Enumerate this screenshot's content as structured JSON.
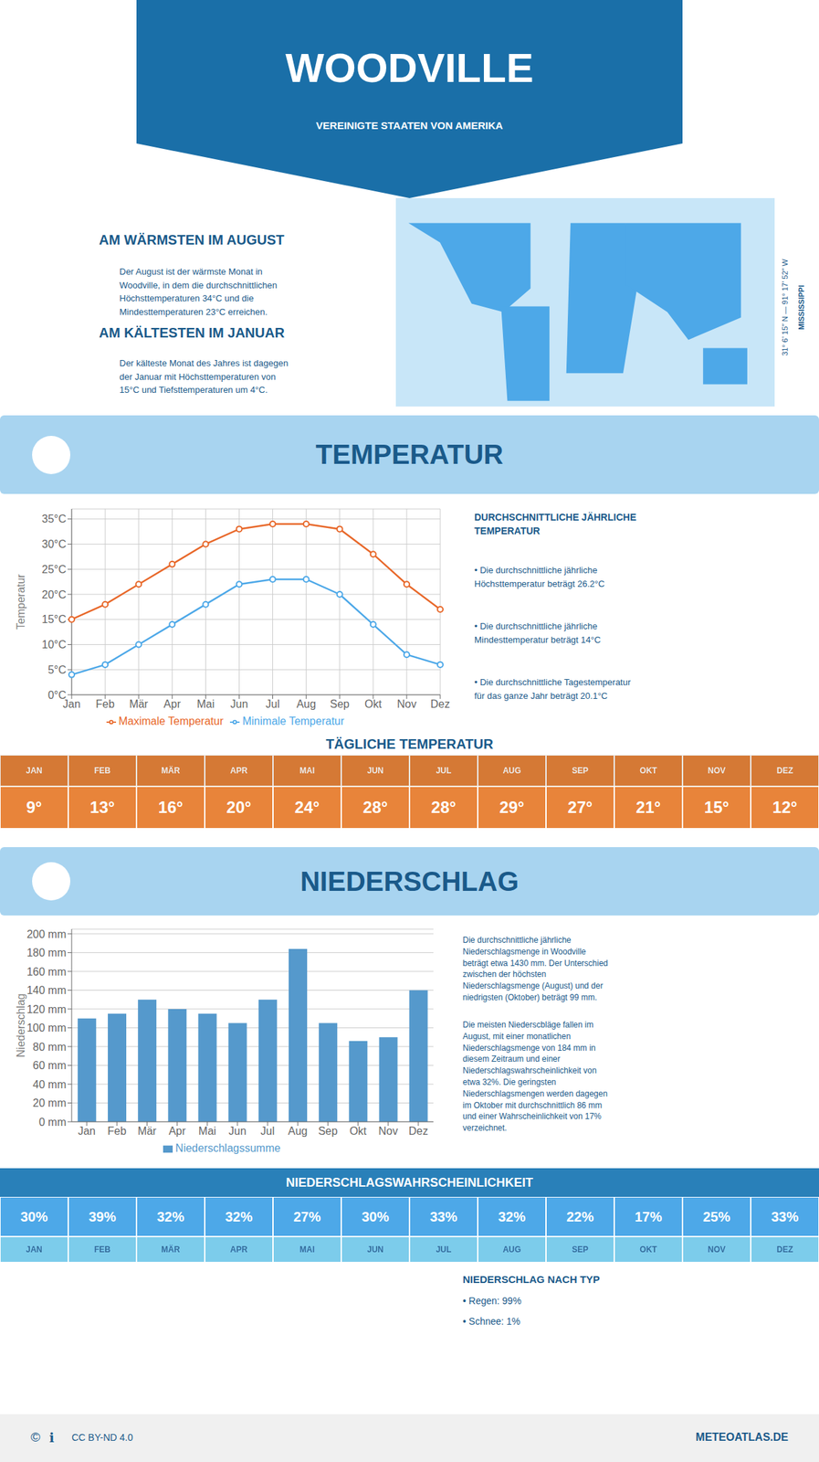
{
  "title": "WOODVILLE",
  "subtitle": "VEREINIGTE STAATEN VON AMERIKA",
  "annotations": [
    "31° 6’ 15″ N — 91° 17’ 52″ W",
    "MISSISSIPPI",
    "AM WÄRMSTEN IM AUGUST",
    "Der August ist der wärmste Monat in\nWoodville, in dem die durchschnittlichen\nHöchsttemperaturen 34°C und die\nMindesttemperaturen 23°C erreichen.",
    "AM KÄLTESTEN IM JANUAR",
    "Der kälteste Monat des Jahres ist dagegen\nder Januar mit Höchsttemperaturen von\n15°C und Tiefsttemperaturen um 4°C.",
    "©",
    "ℹ",
    "CC BY-ND 4.0",
    "METEOATLAS.DE"
  ],
  "chart_data": [
    {
      "type": "line",
      "title": "TEMPERATUR",
      "categories": [
        "Jan",
        "Feb",
        "Mär",
        "Apr",
        "Mai",
        "Jun",
        "Jul",
        "Aug",
        "Sep",
        "Okt",
        "Nov",
        "Dez"
      ],
      "series": [
        {
          "name": "Maximale Temperatur",
          "color": "#e8682a",
          "values": [
            15,
            18,
            22,
            26,
            30,
            33,
            34,
            34,
            33,
            28,
            22,
            17
          ]
        },
        {
          "name": "Minimale Temperatur",
          "color": "#4da8e8",
          "values": [
            4,
            6,
            10,
            14,
            18,
            22,
            23,
            23,
            20,
            14,
            8,
            6
          ]
        }
      ],
      "ylabel": "Temperatur",
      "ylim": [
        0,
        37
      ],
      "yticks": [
        {
          "value": 0,
          "label": "0°C"
        },
        {
          "value": 5,
          "label": "5°C"
        },
        {
          "value": 10,
          "label": "10°C"
        },
        {
          "value": 15,
          "label": "15°C"
        },
        {
          "value": 20,
          "label": "20°C"
        },
        {
          "value": 25,
          "label": "25°C"
        },
        {
          "value": 30,
          "label": "30°C"
        },
        {
          "value": 35,
          "label": "35°C"
        }
      ],
      "grid": true,
      "legend": "bottom",
      "marker": "circle",
      "annotations": [
        "DURCHSCHNITTLICHE JÄHRLICHE\nTEMPERATUR",
        "• Die durchschnittliche jährliche\nHöchsttemperatur beträgt 26.2°C",
        "• Die durchschnittliche jährliche\nMindesttemperatur beträgt 14°C",
        "• Die durchschnittliche Tagestemperatur\nfür das ganze Jahr beträgt 20.1°C"
      ]
    },
    {
      "type": "table",
      "title": "TÄGLICHE TEMPERATUR",
      "categories": [
        "JAN",
        "FEB",
        "MÄR",
        "APR",
        "MAI",
        "JUN",
        "JUL",
        "AUG",
        "SEP",
        "OKT",
        "NOV",
        "DEZ"
      ],
      "values": [
        9,
        13,
        16,
        20,
        24,
        28,
        28,
        29,
        27,
        21,
        15,
        12
      ],
      "value_labels": [
        "9°",
        "13°",
        "16°",
        "20°",
        "24°",
        "28°",
        "28°",
        "29°",
        "27°",
        "21°",
        "15°",
        "12°"
      ],
      "color": "#e8843a",
      "data_labels": true
    },
    {
      "type": "bar",
      "title": "NIEDERSCHLAG",
      "categories": [
        "Jan",
        "Feb",
        "Mär",
        "Apr",
        "Mai",
        "Jun",
        "Jul",
        "Aug",
        "Sep",
        "Okt",
        "Nov",
        "Dez"
      ],
      "series": [
        {
          "name": "Niederschlagssumme",
          "color": "#5599cc",
          "values": [
            110,
            115,
            130,
            120,
            115,
            105,
            130,
            184,
            105,
            86,
            90,
            140
          ]
        }
      ],
      "ylabel": "Niederschlag",
      "ylim": [
        0,
        205
      ],
      "yticks": [
        {
          "value": 0,
          "label": "0 mm"
        },
        {
          "value": 20,
          "label": "20 mm"
        },
        {
          "value": 40,
          "label": "40 mm"
        },
        {
          "value": 60,
          "label": "60 mm"
        },
        {
          "value": 80,
          "label": "80 mm"
        },
        {
          "value": 100,
          "label": "100 mm"
        },
        {
          "value": 120,
          "label": "120 mm"
        },
        {
          "value": 140,
          "label": "140 mm"
        },
        {
          "value": 160,
          "label": "160 mm"
        },
        {
          "value": 180,
          "label": "180 mm"
        },
        {
          "value": 200,
          "label": "200 mm"
        }
      ],
      "grid": "y",
      "legend": "bottom",
      "annotations": [
        "Die durchschnittliche jährliche\nNiederschlagsmenge in Woodville\nbeträgt etwa 1430 mm. Der Unterschied\nzwischen der höchsten\nNiederschlagsmenge (August) und der\nniedrigsten (Oktober) beträgt 99 mm.",
        "Die meisten Niederscbläge fallen im\nAugust, mit einer monatlichen\nNiederschlagsmenge von 184 mm in\ndiesem Zeitraum und einer\nNiederschlagswahrscheinlichkeit von\netwa 32%. Die geringsten\nNiederschlagsmengen werden dagegen\nim Oktober mit durchschnittlich 86 mm\nund einer Wahrscheinlichkeit von 17%\nverzeichnet."
      ]
    },
    {
      "type": "table",
      "title": "NIEDERSCHLAGSWAHRSCHEINLICHKEIT",
      "categories": [
        "JAN",
        "FEB",
        "MÄR",
        "APR",
        "MAI",
        "JUN",
        "JUL",
        "AUG",
        "SEP",
        "OKT",
        "NOV",
        "DEZ"
      ],
      "values": [
        30,
        39,
        32,
        32,
        27,
        30,
        33,
        32,
        22,
        17,
        25,
        33
      ],
      "value_labels": [
        "30%",
        "39%",
        "32%",
        "32%",
        "27%",
        "30%",
        "33%",
        "32%",
        "22%",
        "17%",
        "25%",
        "33%"
      ],
      "color": "#4da8e8",
      "data_labels": true,
      "annotations": [
        "NIEDERSCHLAG NACH TYP",
        "• Regen: 99%",
        "• Schnee: 1%"
      ]
    }
  ]
}
